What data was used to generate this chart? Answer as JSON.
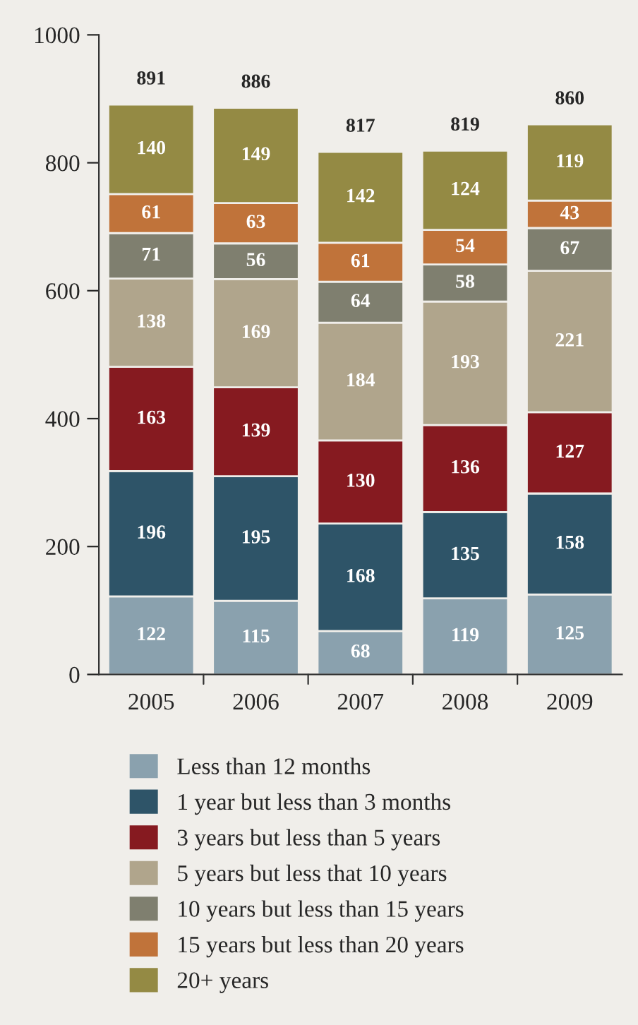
{
  "chart_data": {
    "type": "bar",
    "stacked": true,
    "categories": [
      "2005",
      "2006",
      "2007",
      "2008",
      "2009"
    ],
    "series": [
      {
        "name": "Less than 12 months",
        "color": "#8aa1ae",
        "values": [
          122,
          115,
          68,
          119,
          125
        ]
      },
      {
        "name": "1 year but less than 3 months",
        "color": "#2e5468",
        "values": [
          196,
          195,
          168,
          135,
          158
        ]
      },
      {
        "name": "3 years but less than 5 years",
        "color": "#861a20",
        "values": [
          163,
          139,
          130,
          136,
          127
        ]
      },
      {
        "name": "5 years but less that 10 years",
        "color": "#b0a58c",
        "values": [
          138,
          169,
          184,
          193,
          221
        ]
      },
      {
        "name": "10 years but less than 15 years",
        "color": "#7f7f6f",
        "values": [
          71,
          56,
          64,
          58,
          67
        ]
      },
      {
        "name": "15 years but less than 20 years",
        "color": "#c0733a",
        "values": [
          61,
          63,
          61,
          54,
          43
        ]
      },
      {
        "name": "20+ years",
        "color": "#948a44",
        "values": [
          140,
          149,
          142,
          124,
          119
        ]
      }
    ],
    "totals": [
      "891",
      "886",
      "817",
      "819",
      "860"
    ],
    "data_labels": true,
    "ylim": [
      0,
      1000
    ],
    "yticks": [
      0,
      200,
      400,
      600,
      800,
      1000
    ],
    "grid": false,
    "legend": "bottom"
  }
}
